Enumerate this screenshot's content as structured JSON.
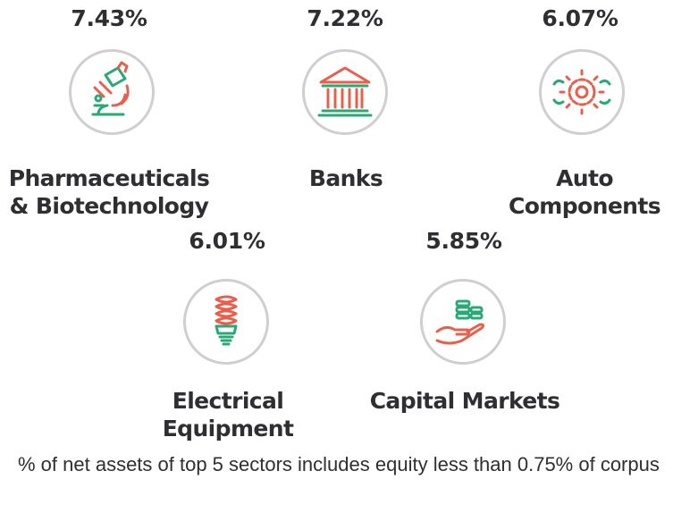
{
  "colors": {
    "red": "#e8604c",
    "green": "#2aa876",
    "ring": "#cfcfcf",
    "text": "#2f2f33"
  },
  "sectors": [
    {
      "percent": "7.43%",
      "name_line1": "Pharmaceuticals",
      "name_line2": "& Biotechnology",
      "icon": "microscope-icon"
    },
    {
      "percent": "7.22%",
      "name_line1": "Banks",
      "name_line2": "",
      "icon": "bank-building-icon"
    },
    {
      "percent": "6.07%",
      "name_line1": "Auto",
      "name_line2": "Components",
      "icon": "gear-icon"
    },
    {
      "percent": "6.01%",
      "name_line1": "Electrical",
      "name_line2": "Equipment",
      "icon": "cfl-bulb-icon"
    },
    {
      "percent": "5.85%",
      "name_line1": "Capital Markets",
      "name_line2": "",
      "icon": "hand-coins-icon"
    }
  ],
  "footnote": "% of net assets of top 5 sectors includes equity less than 0.75% of corpus"
}
